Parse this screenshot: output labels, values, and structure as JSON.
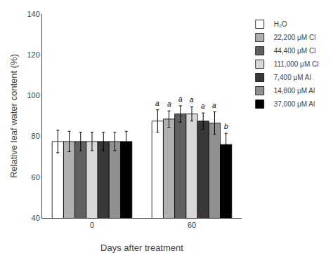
{
  "chart_data": {
    "type": "bar",
    "xlabel": "Days after treatment",
    "ylabel": "Relative leaf water content (%)",
    "categories": [
      "0",
      "60"
    ],
    "series": [
      {
        "name": "H₂O",
        "color": "#ffffff",
        "values": [
          77.5,
          87.5
        ],
        "errors": [
          5.5,
          5.5
        ],
        "annotations": [
          null,
          "a"
        ]
      },
      {
        "name": "22,200 μM Cl",
        "color": "#b0b0b0",
        "values": [
          77.5,
          88.5
        ],
        "errors": [
          5.0,
          4.0
        ],
        "annotations": [
          null,
          "a"
        ]
      },
      {
        "name": "44,400 μM Cl",
        "color": "#606060",
        "values": [
          77.5,
          91.0
        ],
        "errors": [
          4.5,
          4.0
        ],
        "annotations": [
          null,
          "a"
        ]
      },
      {
        "name": "111,000 μM Cl",
        "color": "#d8d8d8",
        "values": [
          77.5,
          91.0
        ],
        "errors": [
          4.5,
          3.5
        ],
        "annotations": [
          null,
          "a"
        ]
      },
      {
        "name": "7,400 μM Al",
        "color": "#383838",
        "values": [
          77.5,
          87.5
        ],
        "errors": [
          4.5,
          4.0
        ],
        "annotations": [
          null,
          "a"
        ]
      },
      {
        "name": "14,800 μM Al",
        "color": "#909090",
        "values": [
          77.5,
          86.5
        ],
        "errors": [
          4.5,
          5.5
        ],
        "annotations": [
          null,
          "a"
        ]
      },
      {
        "name": "37,000 μM Al",
        "color": "#000000",
        "values": [
          77.5,
          76.0
        ],
        "errors": [
          5.0,
          5.5
        ],
        "annotations": [
          null,
          "b"
        ]
      }
    ],
    "ylim": [
      40,
      140
    ],
    "yticks": [
      40,
      60,
      80,
      100,
      120,
      140
    ],
    "grid": false,
    "legend": "upper right"
  }
}
